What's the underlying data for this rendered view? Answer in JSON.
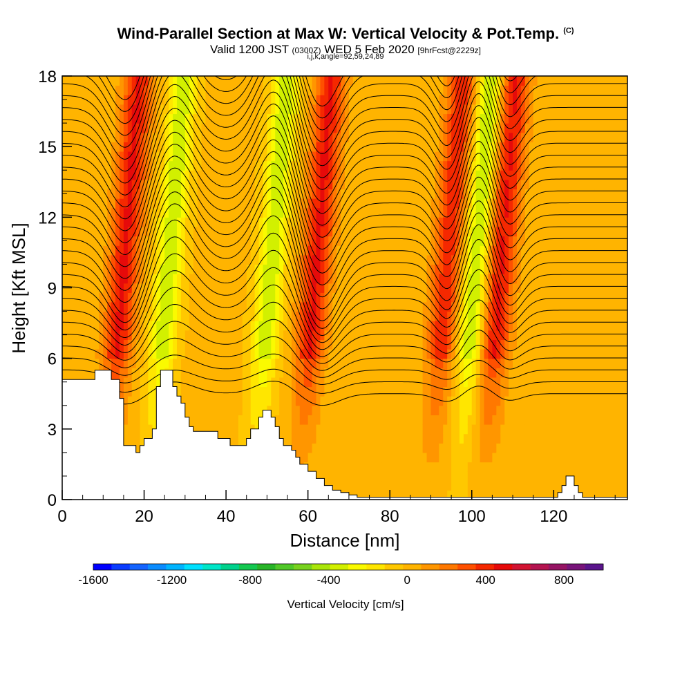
{
  "title": {
    "main": "Wind-Parallel Section at Max W: Vertical Velocity & Pot.Temp.",
    "copyright": "(C)",
    "valid_prefix": "Valid 1200 JST",
    "valid_utc": "(0300Z)",
    "valid_date": "WED 5 Feb 2020",
    "forecast": "[9hrFcst@2229z]",
    "indices": "i,j,k,angle=92,59,24,89"
  },
  "chart_data": {
    "type": "heatmap",
    "xlabel": "Distance [nm]",
    "ylabel": "Height [Kft MSL]",
    "xlim": [
      0,
      138
    ],
    "ylim": [
      0,
      18
    ],
    "x_ticks": [
      "0",
      "20",
      "40",
      "60",
      "80",
      "100",
      "120"
    ],
    "y_ticks": [
      "0",
      "3",
      "6",
      "9",
      "12",
      "15",
      "18"
    ],
    "x_tick_values": [
      0,
      20,
      40,
      60,
      80,
      100,
      120
    ],
    "y_tick_values": [
      0,
      3,
      6,
      9,
      12,
      15,
      18
    ],
    "colorbar": {
      "label": "Vertical Velocity [cm/s]",
      "min": -1600,
      "max": 1000,
      "step": 100,
      "tick_labels": [
        "-1600",
        "-1200",
        "-800",
        "-400",
        "0",
        "400",
        "800"
      ],
      "tick_values": [
        -1600,
        -1200,
        -800,
        -400,
        0,
        400,
        800
      ],
      "colors": [
        "#0000ff",
        "#0a3cff",
        "#1464ff",
        "#0a8cff",
        "#00b4ff",
        "#00e0ff",
        "#00e6c8",
        "#00d28c",
        "#14c850",
        "#28b428",
        "#50c828",
        "#78d21e",
        "#aae60a",
        "#d2f000",
        "#fafa00",
        "#ffe600",
        "#ffc800",
        "#ffb400",
        "#ff9600",
        "#ff7800",
        "#ff5000",
        "#f52800",
        "#e60a0a",
        "#d21432",
        "#b41450",
        "#961464",
        "#78147a",
        "#5a148c"
      ]
    },
    "w_series": [
      {
        "name": "updraft",
        "x": 16,
        "w": 500
      },
      {
        "name": "downdraft",
        "x": 27,
        "w": -400
      },
      {
        "name": "downdraft",
        "x": 52,
        "w": -400
      },
      {
        "name": "updraft",
        "x": 63,
        "w": 500
      },
      {
        "name": "updraft",
        "x": 95,
        "w": 450
      },
      {
        "name": "downdraft",
        "x": 102,
        "w": -450
      },
      {
        "name": "updraft",
        "x": 108,
        "w": 500
      }
    ],
    "terrain": {
      "x": [
        0,
        4,
        8,
        9,
        12,
        13,
        14,
        15,
        16,
        17,
        18,
        19,
        20,
        21,
        22,
        23,
        24,
        25,
        26,
        27,
        28,
        29,
        30,
        31,
        32,
        33,
        35,
        38,
        40,
        41,
        42,
        44,
        45,
        46,
        47,
        48,
        49,
        50,
        51,
        52,
        53,
        54,
        55,
        56,
        57,
        58,
        60,
        62,
        64,
        66,
        68,
        70,
        72,
        75,
        80,
        90,
        100,
        110,
        115,
        118,
        120,
        121,
        122,
        123,
        124,
        125,
        126,
        127,
        130,
        135,
        138
      ],
      "h": [
        5.1,
        5.1,
        5.5,
        5.5,
        5.1,
        5.1,
        4.3,
        2.3,
        2.3,
        2.3,
        2.0,
        2.3,
        2.6,
        2.6,
        3.0,
        4.8,
        5.5,
        5.5,
        5.5,
        4.8,
        4.4,
        4.1,
        3.5,
        3.1,
        2.9,
        2.9,
        2.9,
        2.6,
        2.6,
        2.3,
        2.3,
        2.3,
        2.6,
        3.0,
        3.0,
        3.5,
        3.8,
        3.8,
        3.5,
        3.1,
        2.6,
        2.3,
        2.3,
        2.1,
        1.8,
        1.5,
        1.2,
        0.9,
        0.6,
        0.4,
        0.3,
        0.2,
        0.1,
        0.1,
        0.1,
        0.1,
        0.1,
        0.1,
        0.1,
        0.1,
        0.1,
        0.3,
        0.6,
        1.0,
        1.0,
        0.6,
        0.3,
        0.1,
        0.1,
        0.1,
        0.1
      ]
    },
    "contours": {
      "variable": "potential temperature",
      "count": 30,
      "base_height": 4.5,
      "top_height": 19.2
    }
  }
}
